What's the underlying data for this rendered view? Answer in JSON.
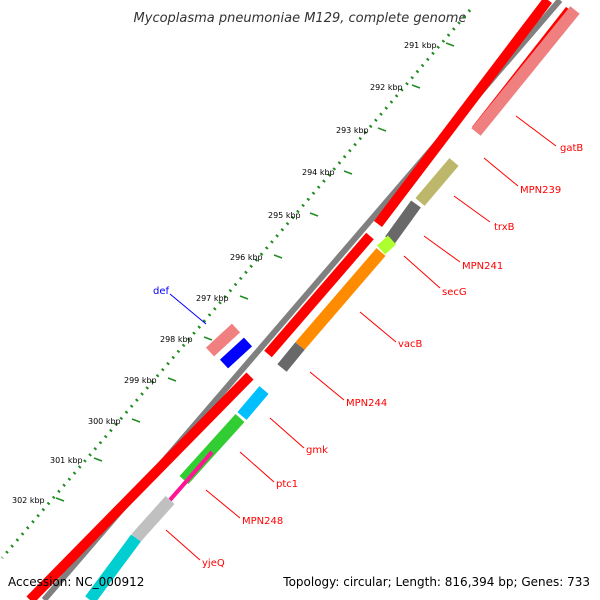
{
  "title": "Mycoplasma pneumoniae M129, complete genome",
  "footer": {
    "accession": "Accession: NC_000912",
    "summary": "Topology: circular; Length: 816,394 bp; Genes: 733"
  },
  "colors": {
    "backbone": "#808080",
    "cds": "#ff0000",
    "ticks": "#228b22",
    "label_red": "#ff0000",
    "label_blue": "#0000ff"
  },
  "ticks": [
    "291 kbp",
    "292 kbp",
    "293 kbp",
    "294 kbp",
    "295 kbp",
    "296 kbp",
    "297 kbp",
    "298 kbp",
    "299 kbp",
    "300 kbp",
    "301 kbp",
    "302 kbp"
  ],
  "genes": [
    {
      "name": "gatB",
      "color": "#f08080"
    },
    {
      "name": "MPN239",
      "color": "#f08080"
    },
    {
      "name": "trxB",
      "color": "#bdb76b"
    },
    {
      "name": "MPN241",
      "color": "#696969"
    },
    {
      "name": "secG",
      "color": "#adff2f"
    },
    {
      "name": "vacB",
      "color": "#ff8c00"
    },
    {
      "name": "MPN244",
      "color": "#696969"
    },
    {
      "name": "gmk",
      "color": "#00bfff"
    },
    {
      "name": "ptc1",
      "color": "#32cd32"
    },
    {
      "name": "MPN248",
      "color": "#ff1493"
    },
    {
      "name": "yjeQ",
      "color": "#c0c0c0"
    },
    {
      "name": "def",
      "color": "#0000ff"
    }
  ]
}
